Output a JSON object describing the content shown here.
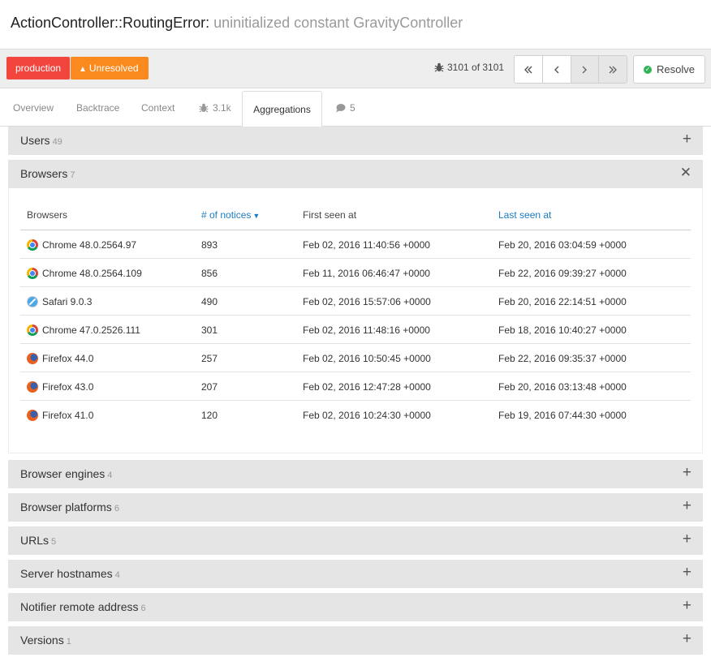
{
  "header": {
    "error_class": "ActionController::RoutingError:",
    "error_message": "uninitialized constant GravityController"
  },
  "toolbar": {
    "environment_badge": "production",
    "status_badge": "Unresolved",
    "notice_counter": "3101 of 3101",
    "resolve_label": "Resolve"
  },
  "tabs": [
    {
      "label": "Overview"
    },
    {
      "label": "Backtrace"
    },
    {
      "label": "Context"
    },
    {
      "label": "3.1k",
      "icon": "bug-icon"
    },
    {
      "label": "Aggregations",
      "active": true
    },
    {
      "label": "5",
      "icon": "comment-icon"
    }
  ],
  "sections": {
    "users": {
      "name": "Users",
      "count": "49"
    },
    "browsers": {
      "name": "Browsers",
      "count": "7"
    },
    "browser_engines": {
      "name": "Browser engines",
      "count": "4"
    },
    "browser_platforms": {
      "name": "Browser platforms",
      "count": "6"
    },
    "urls": {
      "name": "URLs",
      "count": "5"
    },
    "server_hostnames": {
      "name": "Server hostnames",
      "count": "4"
    },
    "notifier_remote_address": {
      "name": "Notifier remote address",
      "count": "6"
    },
    "versions": {
      "name": "Versions",
      "count": "1"
    }
  },
  "browsers_table": {
    "columns": [
      "Browsers",
      "# of notices",
      "First seen at",
      "Last seen at"
    ],
    "rows": [
      {
        "icon": "chrome",
        "browser": "Chrome 48.0.2564.97",
        "notices": "893",
        "first_seen": "Feb 02, 2016 11:40:56 +0000",
        "last_seen": "Feb 20, 2016 03:04:59 +0000"
      },
      {
        "icon": "chrome",
        "browser": "Chrome 48.0.2564.109",
        "notices": "856",
        "first_seen": "Feb 11, 2016 06:46:47 +0000",
        "last_seen": "Feb 22, 2016 09:39:27 +0000"
      },
      {
        "icon": "safari",
        "browser": "Safari 9.0.3",
        "notices": "490",
        "first_seen": "Feb 02, 2016 15:57:06 +0000",
        "last_seen": "Feb 20, 2016 22:14:51 +0000"
      },
      {
        "icon": "chrome",
        "browser": "Chrome 47.0.2526.111",
        "notices": "301",
        "first_seen": "Feb 02, 2016 11:48:16 +0000",
        "last_seen": "Feb 18, 2016 10:40:27 +0000"
      },
      {
        "icon": "firefox",
        "browser": "Firefox 44.0",
        "notices": "257",
        "first_seen": "Feb 02, 2016 10:50:45 +0000",
        "last_seen": "Feb 22, 2016 09:35:37 +0000"
      },
      {
        "icon": "firefox",
        "browser": "Firefox 43.0",
        "notices": "207",
        "first_seen": "Feb 02, 2016 12:47:28 +0000",
        "last_seen": "Feb 20, 2016 03:13:48 +0000"
      },
      {
        "icon": "firefox",
        "browser": "Firefox 41.0",
        "notices": "120",
        "first_seen": "Feb 02, 2016 10:24:30 +0000",
        "last_seen": "Feb 19, 2016 07:44:30 +0000"
      }
    ]
  }
}
